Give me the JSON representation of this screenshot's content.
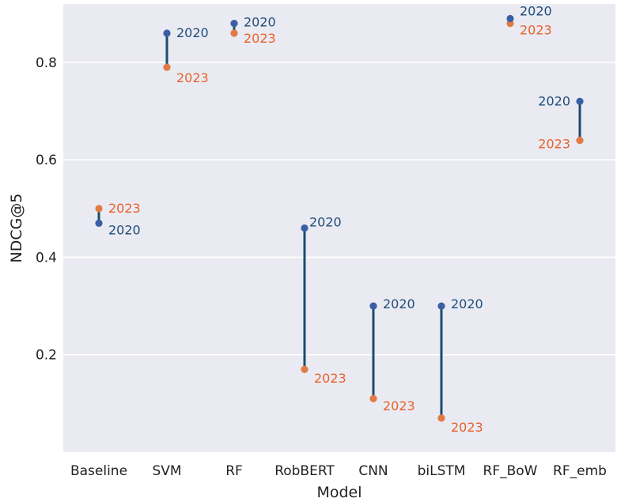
{
  "colors": {
    "plot_background": "#eaeaf2",
    "grid": "#ffffff",
    "line_2020": "#2b5c8a",
    "line_connector": "#1a4d6e",
    "series_2020": "#3a5fa4",
    "series_2023": "#e07b45",
    "label_2020": "#1f4d7a",
    "label_2023": "#e8622a"
  },
  "chart_data": {
    "type": "dumbbell",
    "xlabel": "Model",
    "ylabel": "NDCG@5",
    "categories": [
      "Baseline",
      "SVM",
      "RF",
      "RobBERT",
      "CNN",
      "biLSTM",
      "RF_BoW",
      "RF_emb"
    ],
    "ylim": [
      0.0,
      0.92
    ],
    "yticks": [
      0.2,
      0.4,
      0.6,
      0.8
    ],
    "ytick_labels": [
      "0.2",
      "0.4",
      "0.6",
      "0.8"
    ],
    "grid": true,
    "series": [
      {
        "name": "2020",
        "values": [
          0.47,
          0.86,
          0.88,
          0.46,
          0.3,
          0.3,
          0.89,
          0.72
        ]
      },
      {
        "name": "2023",
        "values": [
          0.5,
          0.79,
          0.86,
          0.17,
          0.11,
          0.07,
          0.88,
          0.64
        ]
      }
    ]
  }
}
